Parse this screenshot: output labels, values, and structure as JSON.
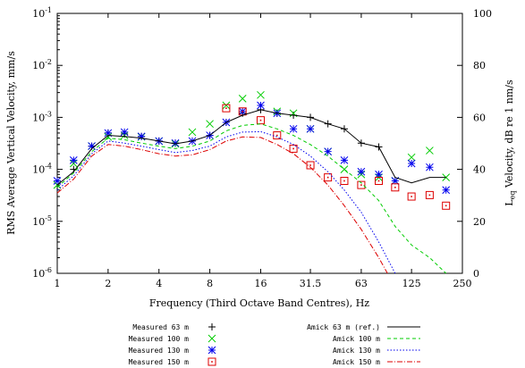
{
  "chart_data": {
    "type": "line",
    "xlabel": "Frequency (Third Octave Band Centres), Hz",
    "ylabel_left": "RMS Average Vertical Velocity, mm/s",
    "ylabel_right_main": "L",
    "ylabel_right_sub": "eq",
    "ylabel_right_rest": " Velocity, dB re 1 nm/s",
    "x_ticks": [
      "1",
      "2",
      "4",
      "8",
      "16",
      "31.5",
      "63",
      "125",
      "250"
    ],
    "y_left_ticks": [
      {
        "base": "10",
        "exp": "-6"
      },
      {
        "base": "10",
        "exp": "-5"
      },
      {
        "base": "10",
        "exp": "-4"
      },
      {
        "base": "10",
        "exp": "-3"
      },
      {
        "base": "10",
        "exp": "-2"
      },
      {
        "base": "10",
        "exp": "-1"
      }
    ],
    "y_right_ticks": [
      "0",
      "20",
      "40",
      "60",
      "80",
      "100"
    ],
    "x_scale": "log2",
    "y_scale": "log10",
    "xlim": [
      1,
      250
    ],
    "ylim": [
      1e-06,
      0.1
    ],
    "y_right_lim": [
      0,
      100
    ],
    "legend_position": "bottom",
    "series": [
      {
        "name": "Measured 63 m",
        "kind": "marker",
        "marker": "plus",
        "color": "#000000",
        "x": [
          1,
          1.25,
          1.6,
          2,
          2.5,
          3.15,
          4,
          5,
          6.3,
          8,
          10,
          12.5,
          16,
          20,
          25,
          31.5,
          40,
          50,
          63,
          80
        ],
        "y": [
          6e-05,
          0.0001,
          0.00028,
          0.0005,
          0.00048,
          0.00043,
          0.00035,
          0.00032,
          0.00035,
          0.00045,
          0.0008,
          0.0012,
          0.0014,
          0.0012,
          0.0011,
          0.001,
          0.00075,
          0.0006,
          0.00032,
          0.00027
        ]
      },
      {
        "name": "Measured 100 m",
        "kind": "marker",
        "marker": "x",
        "color": "#00cc00",
        "x": [
          1,
          1.25,
          1.6,
          2,
          2.5,
          3.15,
          4,
          5,
          6.3,
          8,
          10,
          12.5,
          16,
          20,
          25,
          31.5,
          40,
          50,
          63,
          80,
          100,
          125,
          160,
          200
        ],
        "y": [
          5e-05,
          0.00013,
          0.00028,
          0.00042,
          0.00045,
          0.00042,
          0.00035,
          0.00031,
          0.00052,
          0.00075,
          0.0017,
          0.0023,
          0.0027,
          0.0013,
          0.0012,
          0.0006,
          0.00022,
          0.0001,
          8e-05,
          7e-05,
          6e-05,
          0.00017,
          0.00023,
          7e-05
        ]
      },
      {
        "name": "Measured 130 m",
        "kind": "marker",
        "marker": "star",
        "color": "#0000ee",
        "x": [
          1,
          1.25,
          1.6,
          2,
          2.5,
          3.15,
          4,
          5,
          6.3,
          8,
          10,
          12.5,
          16,
          20,
          25,
          31.5,
          40,
          50,
          63,
          80,
          100,
          125,
          160,
          200
        ],
        "y": [
          6e-05,
          0.00015,
          0.00028,
          0.0005,
          0.00052,
          0.00043,
          0.00035,
          0.00032,
          0.00035,
          0.00045,
          0.0008,
          0.0013,
          0.0017,
          0.0012,
          0.0006,
          0.0006,
          0.00022,
          0.00015,
          9e-05,
          8e-05,
          6e-05,
          0.00013,
          0.00011,
          4e-05
        ]
      },
      {
        "name": "Measured 150 m",
        "kind": "marker",
        "marker": "square-dot",
        "color": "#dd0000",
        "x": [
          10,
          12.5,
          16,
          20,
          25,
          31.5,
          40,
          50,
          63,
          80,
          100,
          125,
          160,
          200
        ],
        "y": [
          0.0015,
          0.0013,
          0.00088,
          0.00045,
          0.00025,
          0.00012,
          7e-05,
          6e-05,
          5e-05,
          6e-05,
          4.5e-05,
          3e-05,
          3.2e-05,
          2e-05
        ]
      },
      {
        "name": "Amick 63 m (ref.)",
        "kind": "line",
        "dash": "",
        "color": "#000000",
        "x": [
          1,
          1.25,
          1.6,
          2,
          2.5,
          3.15,
          4,
          5,
          6.3,
          8,
          10,
          12.5,
          16,
          20,
          25,
          31.5,
          40,
          50,
          63,
          80,
          100,
          125,
          160,
          200
        ],
        "y": [
          5e-05,
          9e-05,
          0.00025,
          0.00045,
          0.00043,
          0.0004,
          0.00035,
          0.00031,
          0.00035,
          0.00045,
          0.0008,
          0.0011,
          0.0014,
          0.0012,
          0.0011,
          0.001,
          0.00075,
          0.0006,
          0.00032,
          0.00027,
          7e-05,
          5.5e-05,
          7e-05,
          7e-05
        ]
      },
      {
        "name": "Amick 100 m",
        "kind": "line",
        "dash": "4,3",
        "color": "#00cc00",
        "x": [
          1,
          1.25,
          1.6,
          2,
          2.5,
          3.15,
          4,
          5,
          6.3,
          8,
          10,
          12.5,
          16,
          20,
          25,
          31.5,
          40,
          50,
          63,
          80,
          100,
          125,
          160,
          200
        ],
        "y": [
          4.5e-05,
          8.5e-05,
          0.00022,
          0.0004,
          0.00037,
          0.00032,
          0.00028,
          0.00025,
          0.00028,
          0.00035,
          0.00055,
          0.0007,
          0.00075,
          0.0006,
          0.00045,
          0.0003,
          0.00018,
          0.0001,
          5.5e-05,
          2.5e-05,
          8e-06,
          3.5e-06,
          2e-06,
          1e-06
        ]
      },
      {
        "name": "Amick 130 m",
        "kind": "line",
        "dash": "1.5,2",
        "color": "#0000ee",
        "x": [
          1,
          1.25,
          1.6,
          2,
          2.5,
          3.15,
          4,
          5,
          6.3,
          8,
          10,
          12.5,
          16,
          20,
          25,
          31.5,
          40,
          50,
          63,
          80,
          100
        ],
        "y": [
          4e-05,
          7.5e-05,
          0.0002,
          0.00035,
          0.00032,
          0.00028,
          0.00024,
          0.00021,
          0.00023,
          0.00028,
          0.00042,
          0.00052,
          0.00053,
          0.00042,
          0.0003,
          0.00018,
          9e-05,
          4e-05,
          1.5e-05,
          4e-06,
          1e-06
        ]
      },
      {
        "name": "Amick 150 m",
        "kind": "line",
        "dash": "6,2,1,2",
        "color": "#dd0000",
        "x": [
          1,
          1.25,
          1.6,
          2,
          2.5,
          3.15,
          4,
          5,
          6.3,
          8,
          10,
          12.5,
          16,
          20,
          25,
          31.5,
          40,
          50,
          63,
          80,
          90
        ],
        "y": [
          3.5e-05,
          6.5e-05,
          0.00018,
          0.0003,
          0.00028,
          0.00024,
          0.0002,
          0.00018,
          0.00019,
          0.00024,
          0.00035,
          0.00042,
          0.00041,
          0.0003,
          0.0002,
          0.00011,
          5e-05,
          2e-05,
          7e-06,
          2e-06,
          1e-06
        ]
      }
    ]
  }
}
